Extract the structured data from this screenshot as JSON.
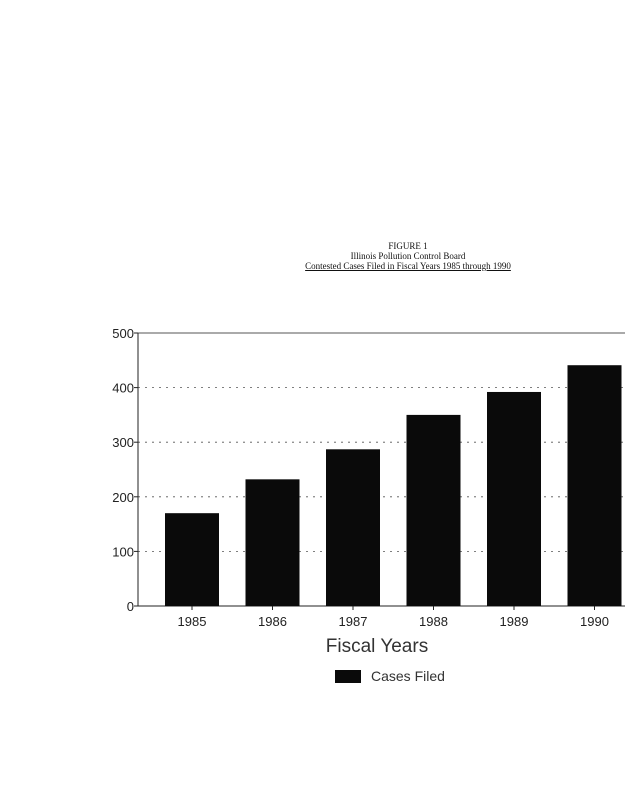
{
  "header": {
    "figure_label": "FIGURE 1",
    "title": "Illinois Pollution Control Board",
    "subtitle": "Contested Cases Filed in Fiscal Years 1985 through 1990"
  },
  "chart_data": {
    "type": "bar",
    "categories": [
      "1985",
      "1986",
      "1987",
      "1988",
      "1989",
      "1990"
    ],
    "series": [
      {
        "name": "Cases Filed",
        "values": [
          170,
          232,
          287,
          350,
          392,
          441
        ]
      }
    ],
    "xlabel": "Fiscal Years",
    "ylabel": "",
    "ylim": [
      0,
      500
    ],
    "yticks": [
      0,
      100,
      200,
      300,
      400,
      500
    ],
    "ytick_labels": [
      "0",
      "100",
      "200",
      "300",
      "400",
      "500"
    ],
    "grid": true,
    "legend_position": "bottom",
    "bar_color": "#0a0a0a"
  }
}
